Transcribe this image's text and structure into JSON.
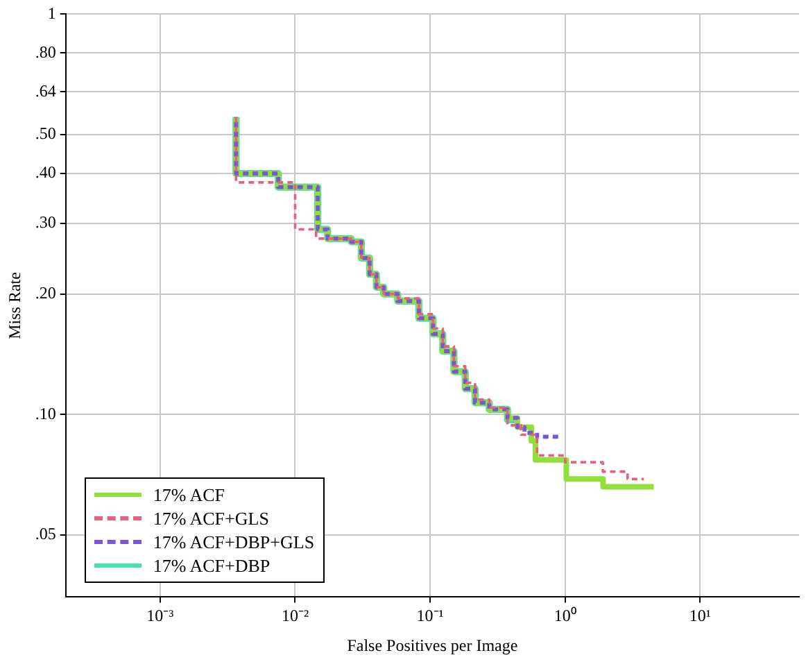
{
  "chart_data": {
    "type": "step",
    "xlabel": "False Positives per Image",
    "ylabel": "Miss Rate",
    "log": "xy",
    "grid": true,
    "legend": "bottom left",
    "marker": "none",
    "xlim": [
      0.0002,
      54
    ],
    "ylim": [
      0.035,
      1
    ],
    "xticks": [
      {
        "value": 0.001,
        "label": "10⁻³"
      },
      {
        "value": 0.01,
        "label": "10⁻²"
      },
      {
        "value": 0.1,
        "label": "10⁻¹"
      },
      {
        "value": 1,
        "label": "10⁰"
      },
      {
        "value": 10,
        "label": "10¹"
      }
    ],
    "yticks": [
      {
        "value": 0.05,
        "label": ".05"
      },
      {
        "value": 0.1,
        "label": ".10"
      },
      {
        "value": 0.2,
        "label": ".20"
      },
      {
        "value": 0.3,
        "label": ".30"
      },
      {
        "value": 0.4,
        "label": ".40"
      },
      {
        "value": 0.5,
        "label": ".50"
      },
      {
        "value": 0.64,
        "label": ".64"
      },
      {
        "value": 0.8,
        "label": ".80"
      },
      1
    ],
    "series": [
      {
        "name": "17% ACF",
        "color": "#90e03c",
        "line_style": "solid",
        "x": [
          0.00365,
          0.00365,
          0.0075,
          0.0147,
          0.0174,
          0.026,
          0.0309,
          0.0356,
          0.04,
          0.0453,
          0.0575,
          0.0826,
          0.105,
          0.124,
          0.15,
          0.182,
          0.215,
          0.274,
          0.374,
          0.443,
          0.562,
          0.603,
          1.02,
          1.91,
          3.24,
          4.53
        ],
        "values": [
          0.553,
          0.41,
          0.4,
          0.37,
          0.29,
          0.275,
          0.27,
          0.246,
          0.224,
          0.208,
          0.2,
          0.192,
          0.174,
          0.159,
          0.144,
          0.128,
          0.116,
          0.107,
          0.103,
          0.098,
          0.093,
          0.086,
          0.077,
          0.069,
          0.066,
          0.066
        ]
      },
      {
        "name": "17% ACF+GLS",
        "color": "#e8607a",
        "line_style": "dashed",
        "x": [
          0.00365,
          0.00365,
          0.01,
          0.0143,
          0.026,
          0.0309,
          0.0356,
          0.04,
          0.0453,
          0.0575,
          0.0826,
          0.105,
          0.124,
          0.15,
          0.182,
          0.215,
          0.274,
          0.374,
          0.47,
          0.62,
          1.0,
          1.9,
          2.9,
          3.83
        ],
        "values": [
          0.553,
          0.41,
          0.38,
          0.29,
          0.275,
          0.27,
          0.246,
          0.224,
          0.208,
          0.2,
          0.195,
          0.178,
          0.164,
          0.148,
          0.132,
          0.12,
          0.109,
          0.104,
          0.094,
          0.089,
          0.079,
          0.076,
          0.072,
          0.069
        ]
      },
      {
        "name": "17% ACF+DBP+GLS",
        "color": "#7b55d8",
        "line_style": "dashed",
        "x": [
          0.00365,
          0.00365,
          0.0075,
          0.0147,
          0.0174,
          0.026,
          0.0309,
          0.0356,
          0.04,
          0.0453,
          0.0575,
          0.0826,
          0.105,
          0.124,
          0.15,
          0.182,
          0.215,
          0.274,
          0.374,
          0.443,
          0.5,
          0.62,
          0.9
        ],
        "values": [
          0.553,
          0.41,
          0.4,
          0.37,
          0.29,
          0.275,
          0.27,
          0.246,
          0.224,
          0.208,
          0.2,
          0.192,
          0.174,
          0.159,
          0.144,
          0.128,
          0.116,
          0.107,
          0.103,
          0.098,
          0.093,
          0.09,
          0.088
        ]
      },
      {
        "name": "17% ACF+DBP",
        "color": "#48e0a8",
        "line_style": "solid",
        "x": [
          0.00365,
          0.00365,
          0.0075,
          0.0147,
          0.0174,
          0.026,
          0.0309,
          0.0356,
          0.04,
          0.0453,
          0.0575,
          0.0826,
          0.105,
          0.124,
          0.15,
          0.182,
          0.215,
          0.274,
          0.374,
          0.46
        ],
        "values": [
          0.553,
          0.41,
          0.4,
          0.37,
          0.29,
          0.275,
          0.27,
          0.246,
          0.224,
          0.208,
          0.2,
          0.192,
          0.174,
          0.159,
          0.144,
          0.128,
          0.116,
          0.107,
          0.103,
          0.097
        ]
      }
    ]
  }
}
